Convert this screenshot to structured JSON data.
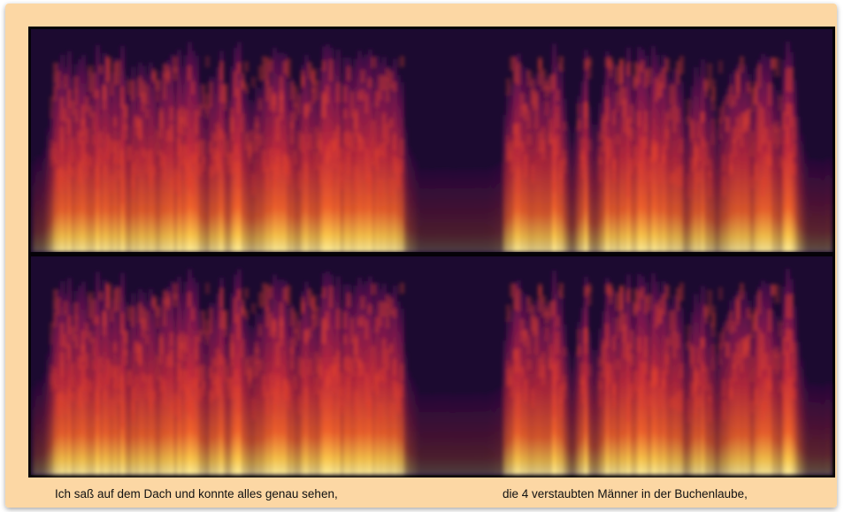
{
  "captions": [
    "Ich saß auf dem Dach und konnte alles genau sehen,",
    "die 4 verstaubten Männer in der Buchenlaube,"
  ]
}
